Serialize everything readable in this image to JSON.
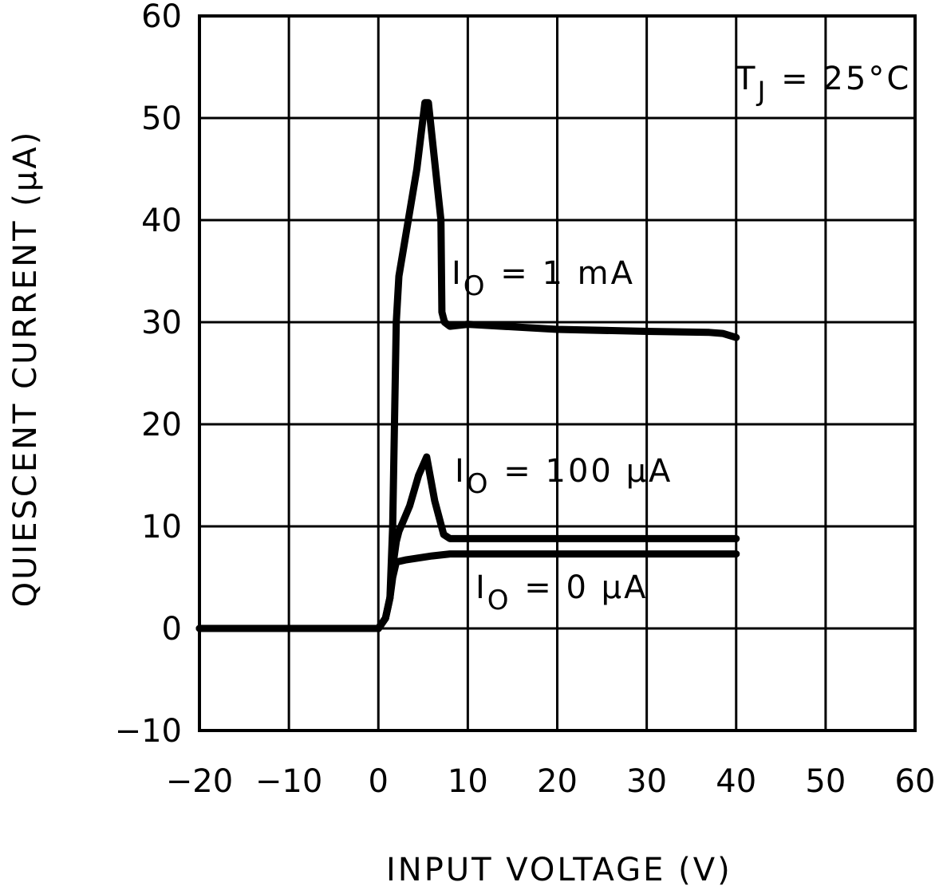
{
  "chart_data": {
    "type": "line",
    "title": "",
    "xlabel": "INPUT VOLTAGE (V)",
    "ylabel": "QUIESCENT CURRENT (µA)",
    "xlim": [
      -20,
      60
    ],
    "ylim": [
      -10,
      60
    ],
    "x_ticks": [
      -20,
      -10,
      0,
      10,
      20,
      30,
      40,
      50,
      60
    ],
    "y_ticks": [
      -10,
      0,
      10,
      20,
      30,
      40,
      50,
      60
    ],
    "x_tick_labels": [
      "−20",
      "−10",
      "0",
      "10",
      "20",
      "30",
      "40",
      "50",
      "60"
    ],
    "y_tick_labels": [
      "−10",
      "0",
      "10",
      "20",
      "30",
      "40",
      "50",
      "60"
    ],
    "grid": true,
    "legend": null,
    "annotations": [
      {
        "text": "T_J = 25°C",
        "x": 51,
        "y": 55
      },
      {
        "text": "I_O = 1 mA",
        "x": 7.5,
        "y": 34
      },
      {
        "text": "I_O = 100 µA",
        "x": 8,
        "y": 16
      },
      {
        "text": "I_O = 0 µA",
        "x": 10,
        "y": 4
      }
    ],
    "series": [
      {
        "name": "I_O = 1 mA",
        "x": [
          -20,
          0,
          0.8,
          1.3,
          1.6,
          2.0,
          2.3,
          4.3,
          5.2,
          5.6,
          7.0,
          7.1,
          7.4,
          8.0,
          10,
          20,
          30,
          37,
          38.5,
          40
        ],
        "y": [
          0,
          0,
          1,
          3,
          10,
          30,
          34.5,
          45,
          51.5,
          51.5,
          40,
          31,
          30,
          29.6,
          29.8,
          29.3,
          29.1,
          29.0,
          28.9,
          28.5
        ]
      },
      {
        "name": "I_O = 100 µA",
        "x": [
          -20,
          0,
          0.8,
          1.3,
          1.6,
          2.0,
          2.3,
          3.5,
          4.5,
          5.4,
          6.3,
          7.3,
          8.0,
          10,
          20,
          30,
          40
        ],
        "y": [
          0,
          0,
          1,
          3,
          6,
          8.5,
          9.5,
          12,
          15,
          16.8,
          12.5,
          9.2,
          8.8,
          8.8,
          8.8,
          8.8,
          8.8
        ]
      },
      {
        "name": "I_O = 0 µA",
        "x": [
          -20,
          0,
          0.8,
          1.3,
          1.6,
          2.0,
          3,
          6,
          8,
          10,
          20,
          30,
          40
        ],
        "y": [
          0,
          0,
          1,
          3,
          5,
          6.5,
          6.7,
          7.1,
          7.3,
          7.3,
          7.3,
          7.3,
          7.3
        ]
      }
    ]
  },
  "annotations": {
    "temp_prefix": "T",
    "temp_sub": "J",
    "temp_suffix": " = 25°C",
    "s1_prefix": "I",
    "s1_sub": "O",
    "s1_suffix": "= 1 mA",
    "s2_prefix": "I",
    "s2_sub": "O",
    "s2_suffix": "= 100 µA",
    "s3_prefix": "I",
    "s3_sub": "O",
    "s3_suffix": "= 0 µA"
  },
  "axes": {
    "x_title": "INPUT VOLTAGE (V)",
    "y_title": "QUIESCENT CURRENT (µA)"
  },
  "style": {
    "line_color": "#000000",
    "grid_color": "#000000",
    "background": "#ffffff"
  }
}
